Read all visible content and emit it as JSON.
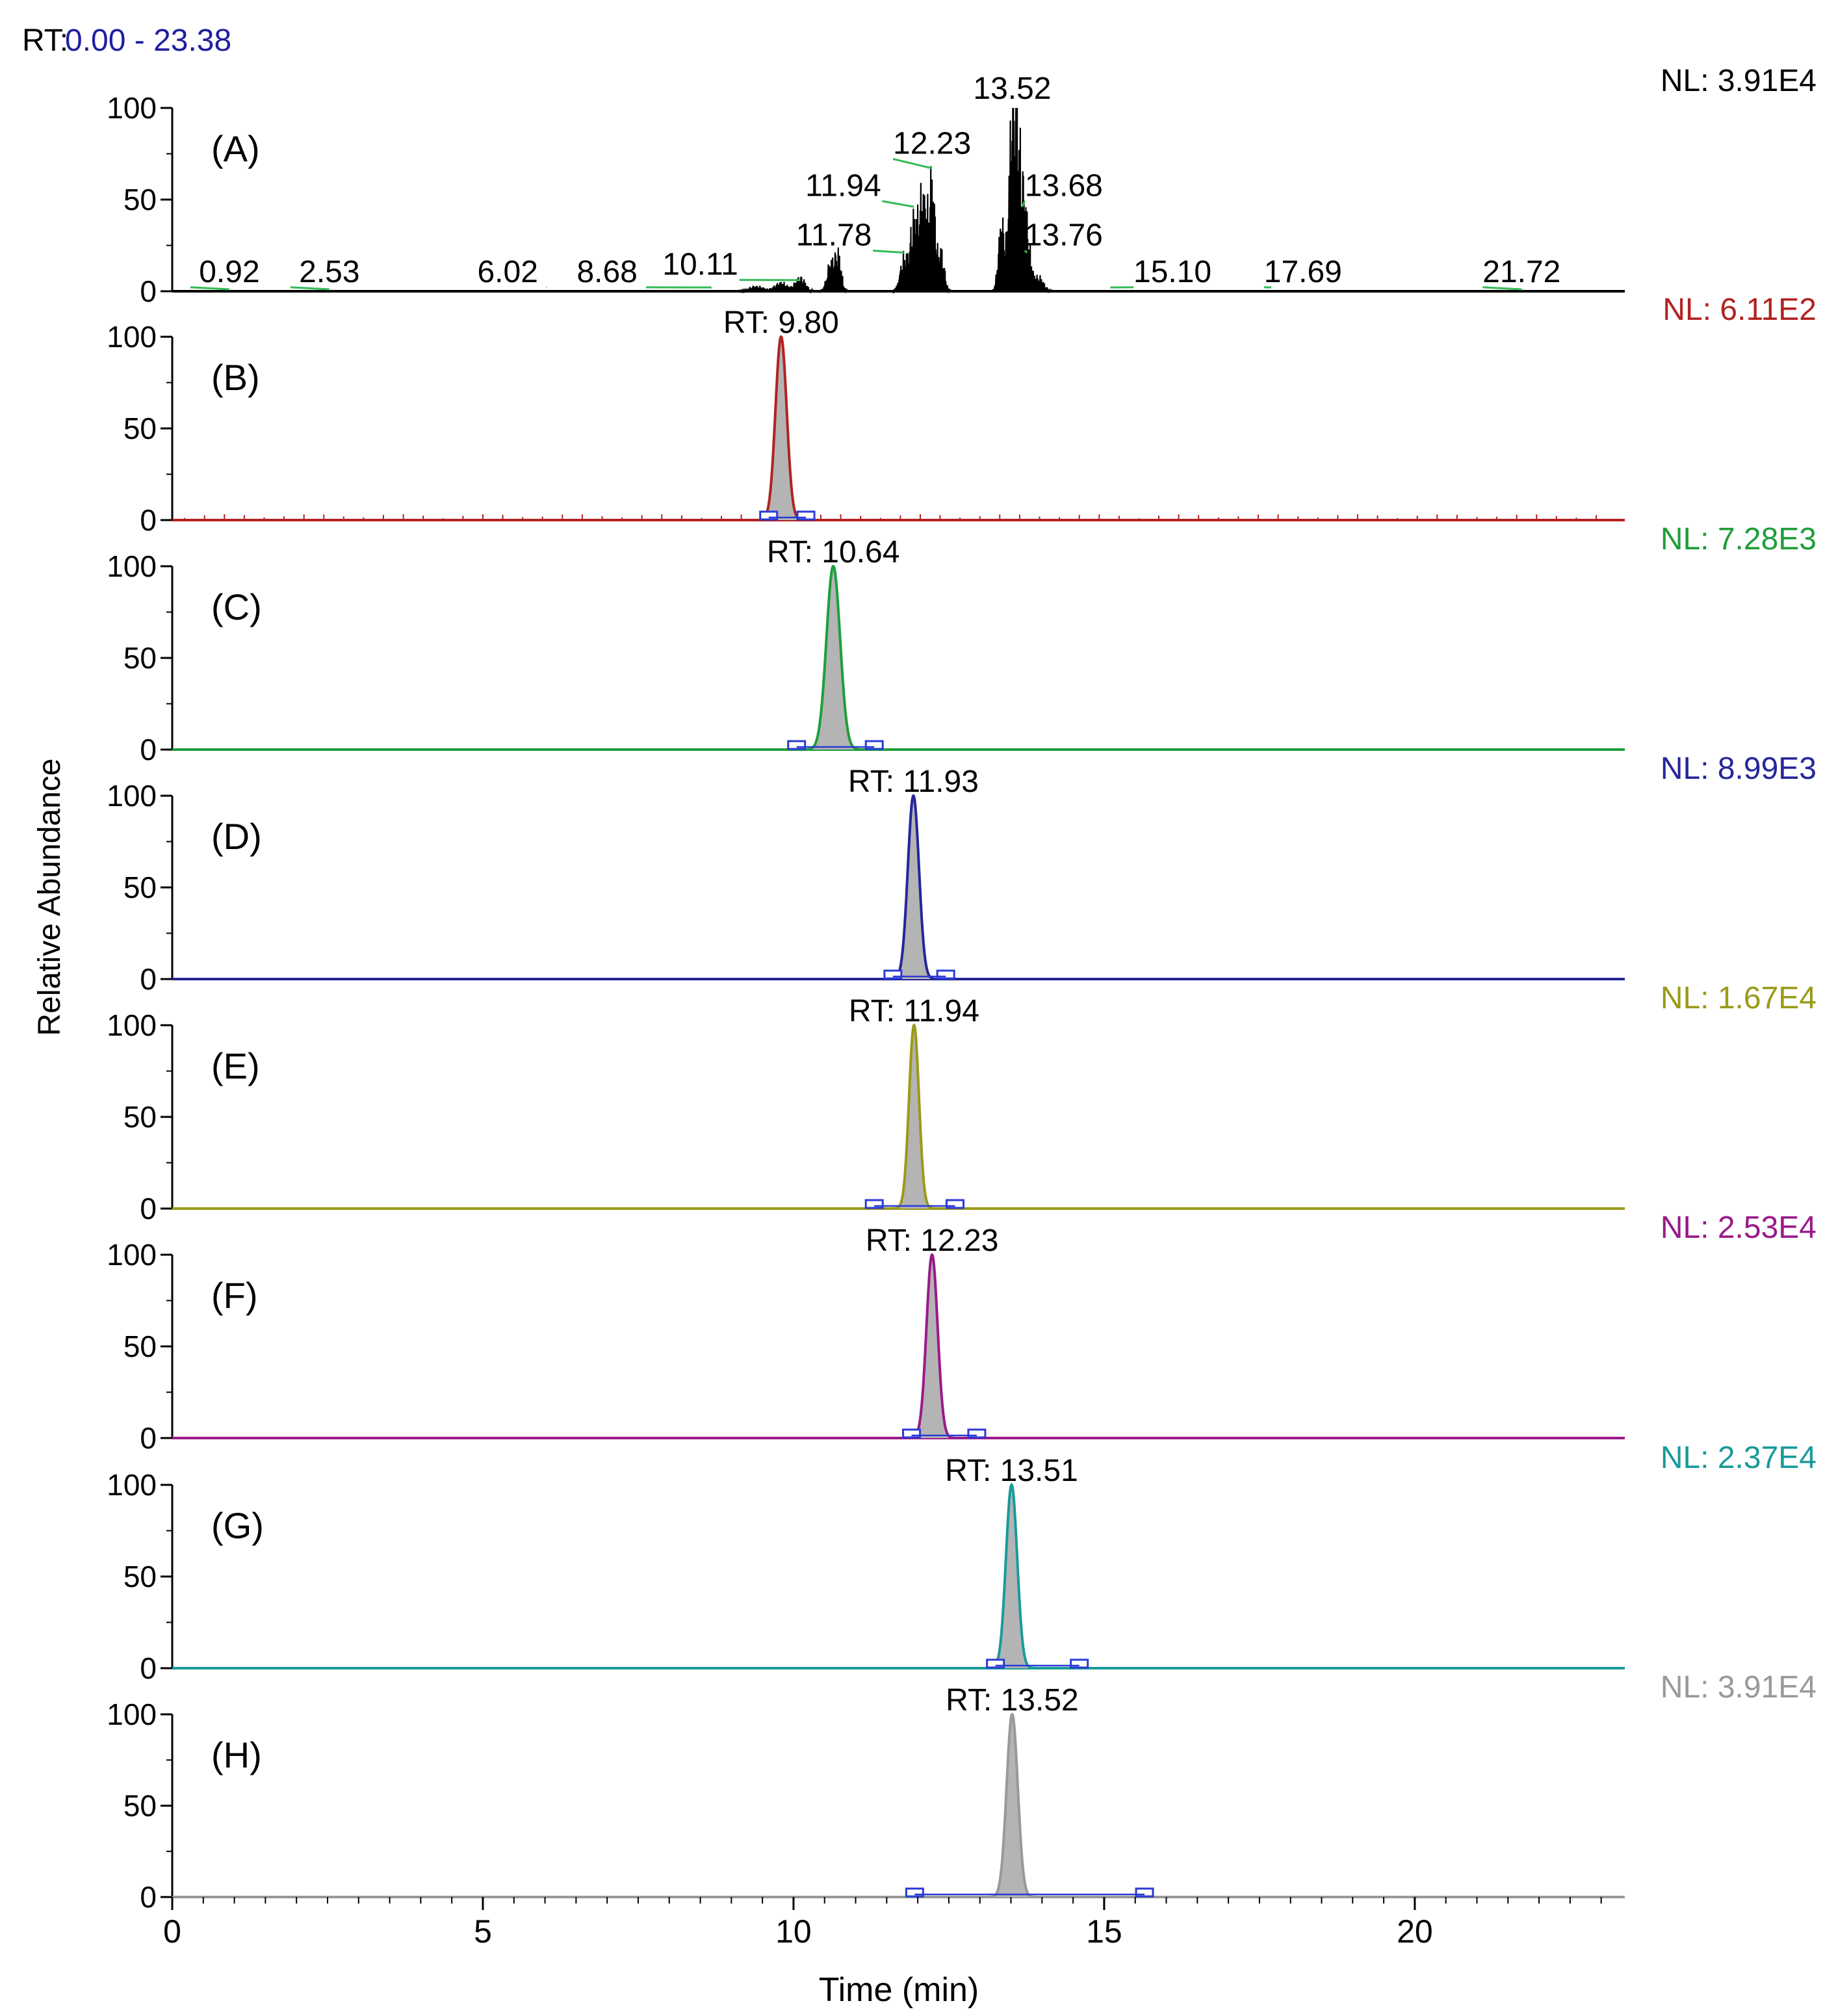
{
  "header": {
    "rt_label": "RT:",
    "rt_range": "0.00 - 23.38",
    "rt_color": "#1f1fa0"
  },
  "colors": {
    "axis": "#000000",
    "fill": "#b4b4b4",
    "baseline_marker": "#2a3ad6",
    "label_connector": "#33bb55"
  },
  "chart_data": {
    "type": "line",
    "title": "",
    "xlabel": "Time (min)",
    "ylabel": "Relative Abundance",
    "xlim": [
      0,
      23.38
    ],
    "ylim": [
      0,
      100
    ],
    "x_ticks": [
      0,
      5,
      10,
      15,
      20
    ],
    "y_ticks": [
      0,
      50,
      100
    ],
    "panels": [
      {
        "panel_label": "(A)",
        "nl_label": "NL: 3.91E4",
        "color": "#000000",
        "tic": true,
        "peaks": [
          {
            "rt": 9.4,
            "height": 3,
            "width": 0.12
          },
          {
            "rt": 9.8,
            "height": 5,
            "width": 0.1
          },
          {
            "rt": 10.11,
            "height": 8,
            "width": 0.08
          },
          {
            "rt": 10.6,
            "height": 16,
            "width": 0.06
          },
          {
            "rt": 10.72,
            "height": 20,
            "width": 0.05
          },
          {
            "rt": 11.78,
            "height": 20,
            "width": 0.06
          },
          {
            "rt": 11.93,
            "height": 40,
            "width": 0.05
          },
          {
            "rt": 12.05,
            "height": 45,
            "width": 0.05
          },
          {
            "rt": 12.12,
            "height": 30,
            "width": 0.04
          },
          {
            "rt": 12.23,
            "height": 65,
            "width": 0.05
          },
          {
            "rt": 12.38,
            "height": 22,
            "width": 0.05
          },
          {
            "rt": 13.35,
            "height": 40,
            "width": 0.05
          },
          {
            "rt": 13.52,
            "height": 100,
            "width": 0.05
          },
          {
            "rt": 13.6,
            "height": 60,
            "width": 0.05
          },
          {
            "rt": 13.68,
            "height": 42,
            "width": 0.05
          },
          {
            "rt": 13.76,
            "height": 28,
            "width": 0.06
          },
          {
            "rt": 13.95,
            "height": 8,
            "width": 0.08
          }
        ],
        "annotations": [
          {
            "text": "0.92",
            "rt": 0.92,
            "y": 5,
            "anchor_rt": 0.92,
            "anchor_y": 0
          },
          {
            "text": "2.53",
            "rt": 2.53,
            "y": 5,
            "anchor_rt": 2.53,
            "anchor_y": 0
          },
          {
            "text": "6.02",
            "rt": 5.4,
            "y": 5,
            "anchor_rt": 6.02,
            "anchor_y": 1
          },
          {
            "text": "8.68",
            "rt": 7.0,
            "y": 5,
            "anchor_rt": 8.68,
            "anchor_y": 1
          },
          {
            "text": "10.11",
            "rt": 8.5,
            "y": 9,
            "anchor_rt": 10.11,
            "anchor_y": 5
          },
          {
            "text": "11.78",
            "rt": 10.65,
            "y": 25,
            "anchor_rt": 11.78,
            "anchor_y": 20
          },
          {
            "text": "11.94",
            "rt": 10.8,
            "y": 52,
            "anchor_rt": 11.94,
            "anchor_y": 45
          },
          {
            "text": "12.23",
            "rt": 12.23,
            "y": 75,
            "anchor_rt": 12.23,
            "anchor_y": 66
          },
          {
            "text": "13.52",
            "rt": 13.52,
            "y": 105,
            "anchor_rt": 13.52,
            "anchor_y": 101
          },
          {
            "text": "13.68",
            "rt": 14.35,
            "y": 52,
            "anchor_rt": 13.68,
            "anchor_y": 45
          },
          {
            "text": "13.76",
            "rt": 14.35,
            "y": 25,
            "anchor_rt": 13.76,
            "anchor_y": 20
          },
          {
            "text": "15.10",
            "rt": 16.1,
            "y": 5,
            "anchor_rt": 15.1,
            "anchor_y": 1
          },
          {
            "text": "17.69",
            "rt": 18.2,
            "y": 5,
            "anchor_rt": 17.69,
            "anchor_y": 1
          },
          {
            "text": "21.72",
            "rt": 21.72,
            "y": 5,
            "anchor_rt": 21.72,
            "anchor_y": 0
          }
        ]
      },
      {
        "panel_label": "(B)",
        "nl_label": "NL: 6.11E2",
        "color": "#b22222",
        "rt_label": "RT: 9.80",
        "peak_rt": 9.8,
        "peak_width": 0.09,
        "integration_start": 9.6,
        "integration_end": 10.2,
        "noise": true
      },
      {
        "panel_label": "(C)",
        "nl_label": "NL: 7.28E3",
        "color": "#1e9e3a",
        "rt_label": "RT: 10.64",
        "peak_rt": 10.64,
        "peak_width": 0.11,
        "integration_start": 10.05,
        "integration_end": 11.3
      },
      {
        "panel_label": "(D)",
        "nl_label": "NL: 8.99E3",
        "color": "#26269a",
        "rt_label": "RT: 11.93",
        "peak_rt": 11.93,
        "peak_width": 0.09,
        "integration_start": 11.6,
        "integration_end": 12.45
      },
      {
        "panel_label": "(E)",
        "nl_label": "NL: 1.67E4",
        "color": "#9a9a18",
        "rt_label": "RT: 11.94",
        "peak_rt": 11.94,
        "peak_width": 0.08,
        "integration_start": 11.3,
        "integration_end": 12.6
      },
      {
        "panel_label": "(F)",
        "nl_label": "NL: 2.53E4",
        "color": "#9a1a8a",
        "rt_label": "RT: 12.23",
        "peak_rt": 12.23,
        "peak_width": 0.09,
        "integration_start": 11.9,
        "integration_end": 12.95
      },
      {
        "panel_label": "(G)",
        "nl_label": "NL: 2.37E4",
        "color": "#1a9a9a",
        "rt_label": "RT: 13.51",
        "peak_rt": 13.51,
        "peak_width": 0.09,
        "integration_start": 13.25,
        "integration_end": 14.6
      },
      {
        "panel_label": "(H)",
        "nl_label": "NL: 3.91E4",
        "color": "#999999",
        "rt_label": "RT: 13.52",
        "peak_rt": 13.52,
        "peak_width": 0.09,
        "integration_start": 11.95,
        "integration_end": 15.65
      }
    ]
  }
}
